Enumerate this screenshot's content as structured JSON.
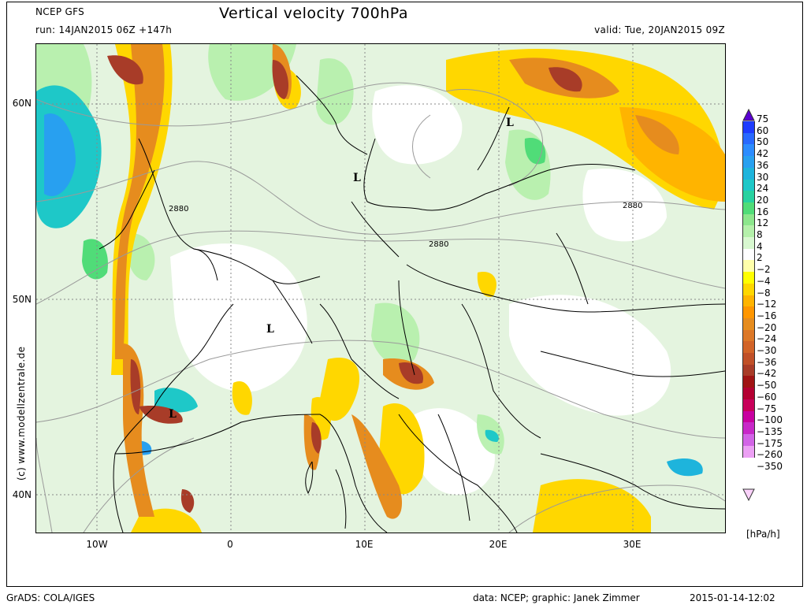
{
  "header": {
    "model": "NCEP GFS",
    "title": "Vertical velocity 700hPa",
    "run": "run: 14JAN2015 06Z +147h",
    "valid": "valid: Tue, 20JAN2015 09Z"
  },
  "axes": {
    "lat_labels": [
      "60N",
      "50N",
      "40N"
    ],
    "lon_labels": [
      "10W",
      "0",
      "10E",
      "20E",
      "30E"
    ]
  },
  "map": {
    "low_marker": "L",
    "contour_labels": [
      "2880",
      "2880",
      "2880"
    ]
  },
  "colorbar": {
    "unit": "[hPa/h]",
    "labels": [
      "75",
      "60",
      "50",
      "42",
      "36",
      "30",
      "24",
      "20",
      "16",
      "12",
      "8",
      "4",
      "2",
      "−2",
      "−4",
      "−8",
      "−12",
      "−16",
      "−20",
      "−24",
      "−30",
      "−36",
      "−42",
      "−50",
      "−60",
      "−75",
      "−100",
      "−135",
      "−175",
      "−260",
      "−350"
    ],
    "colors": [
      "#5a00d2",
      "#1e3cff",
      "#2869ff",
      "#2c8cff",
      "#28a0f0",
      "#1eb4dc",
      "#1ec8c8",
      "#28d2a0",
      "#50dc78",
      "#8ce68c",
      "#b4f0aa",
      "#d8f8d0",
      "#ffffff",
      "#ffffaa",
      "#ffff00",
      "#ffd700",
      "#ffb400",
      "#ff9600",
      "#e68c1e",
      "#dc7828",
      "#d26428",
      "#c05028",
      "#a83c28",
      "#a01414",
      "#b40032",
      "#c8005a",
      "#c800a0",
      "#c828c8",
      "#d264e6",
      "#eca0f4",
      "#fad2fa"
    ]
  },
  "footer": {
    "left": "GrADS: COLA/IGES",
    "middle": "data: NCEP; graphic: Janek Zimmer",
    "right": "2015-01-14-12:02"
  },
  "copyright": "(c)  www.modellzentrale.de"
}
